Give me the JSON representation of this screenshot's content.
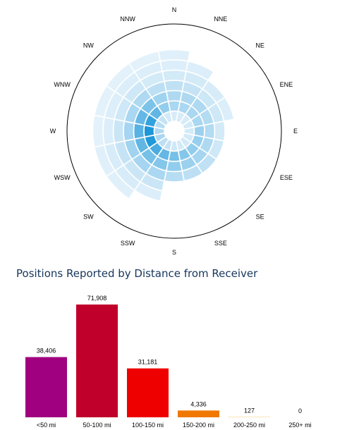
{
  "chart_data": [
    {
      "type": "polar-heatmap",
      "directions": [
        "N",
        "NNE",
        "NE",
        "ENE",
        "E",
        "ESE",
        "SE",
        "SSE",
        "S",
        "SSW",
        "SW",
        "WSW",
        "W",
        "WNW",
        "NW",
        "NNW"
      ],
      "distance_bands": 7,
      "intensity": [
        [
          0.1,
          0.3,
          0.28,
          0.2,
          0.12,
          0.08,
          0.06
        ],
        [
          0.1,
          0.3,
          0.28,
          0.18,
          0.12,
          0.08,
          0.0
        ],
        [
          0.1,
          0.3,
          0.28,
          0.15,
          0.1,
          0.0,
          0.0
        ],
        [
          0.12,
          0.3,
          0.26,
          0.14,
          0.08,
          0.0,
          0.0
        ],
        [
          0.12,
          0.36,
          0.26,
          0.12,
          0.0,
          0.0,
          0.0
        ],
        [
          0.12,
          0.38,
          0.28,
          0.14,
          0.0,
          0.0,
          0.0
        ],
        [
          0.12,
          0.4,
          0.32,
          0.2,
          0.0,
          0.0,
          0.0
        ],
        [
          0.12,
          0.46,
          0.36,
          0.22,
          0.0,
          0.0,
          0.0
        ],
        [
          0.14,
          0.52,
          0.4,
          0.24,
          0.0,
          0.0,
          0.0
        ],
        [
          0.18,
          0.6,
          0.46,
          0.3,
          0.16,
          0.08,
          0.0
        ],
        [
          0.22,
          0.72,
          0.52,
          0.32,
          0.16,
          0.1,
          0.06
        ],
        [
          0.3,
          0.9,
          0.62,
          0.34,
          0.18,
          0.1,
          0.06
        ],
        [
          0.28,
          0.92,
          0.66,
          0.32,
          0.16,
          0.08,
          0.05
        ],
        [
          0.24,
          0.82,
          0.6,
          0.3,
          0.14,
          0.08,
          0.05
        ],
        [
          0.18,
          0.62,
          0.5,
          0.28,
          0.14,
          0.08,
          0.05
        ],
        [
          0.12,
          0.4,
          0.34,
          0.22,
          0.12,
          0.08,
          0.05
        ]
      ],
      "color_low": "#eef6fc",
      "color_high": "#0a8fd6"
    },
    {
      "type": "bar",
      "title": "Positions Reported by Distance from Receiver",
      "categories": [
        "<50 mi",
        "50-100 mi",
        "100-150 mi",
        "150-200 mi",
        "200-250 mi",
        "250+ mi"
      ],
      "values": [
        38406,
        71908,
        31181,
        4336,
        127,
        0
      ],
      "value_labels": [
        "38,406",
        "71,908",
        "31,181",
        "4,336",
        "127",
        "0"
      ],
      "colors": [
        "#a0007f",
        "#c0002a",
        "#ee0000",
        "#f07800",
        "#f0a000",
        "#f0c000"
      ],
      "ylim": [
        0,
        71908
      ]
    }
  ]
}
